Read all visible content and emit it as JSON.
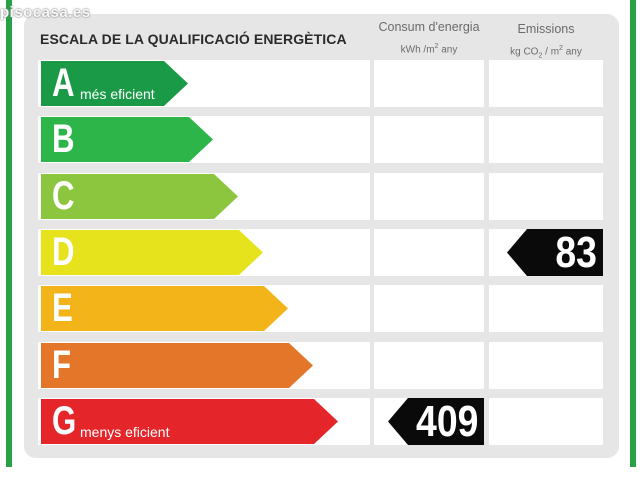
{
  "watermark": "pisocasa.es",
  "title": "ESCALA DE LA QUALIFICACIÓ ENERGÈTICA",
  "columns": {
    "consumption": {
      "label": "Consum d'energia",
      "unit_prefix": "kWh /m",
      "unit_exp": "2",
      "unit_suffix": " any"
    },
    "emissions": {
      "label": "Emissions",
      "unit_prefix": "kg CO",
      "unit_sub": "2",
      "unit_mid": " / m",
      "unit_exp": "2",
      "unit_suffix": " any"
    }
  },
  "ratings": [
    {
      "letter": "A",
      "description": "més eficient",
      "color": "#1a9a47"
    },
    {
      "letter": "B",
      "description": "",
      "color": "#2db54a"
    },
    {
      "letter": "C",
      "description": "",
      "color": "#8cc63f"
    },
    {
      "letter": "D",
      "description": "",
      "color": "#e6e21c"
    },
    {
      "letter": "E",
      "description": "",
      "color": "#f2b418"
    },
    {
      "letter": "F",
      "description": "",
      "color": "#e4762a"
    },
    {
      "letter": "G",
      "description": "menys eficient",
      "color": "#e4262b"
    }
  ],
  "consumption_value": {
    "rating": "G",
    "value": "409"
  },
  "emissions_value": {
    "rating": "D",
    "value": "83"
  },
  "colors": {
    "border_green": "#27a046",
    "panel_bg": "#e6e6e6",
    "tag_bg": "#0a0a0a"
  }
}
